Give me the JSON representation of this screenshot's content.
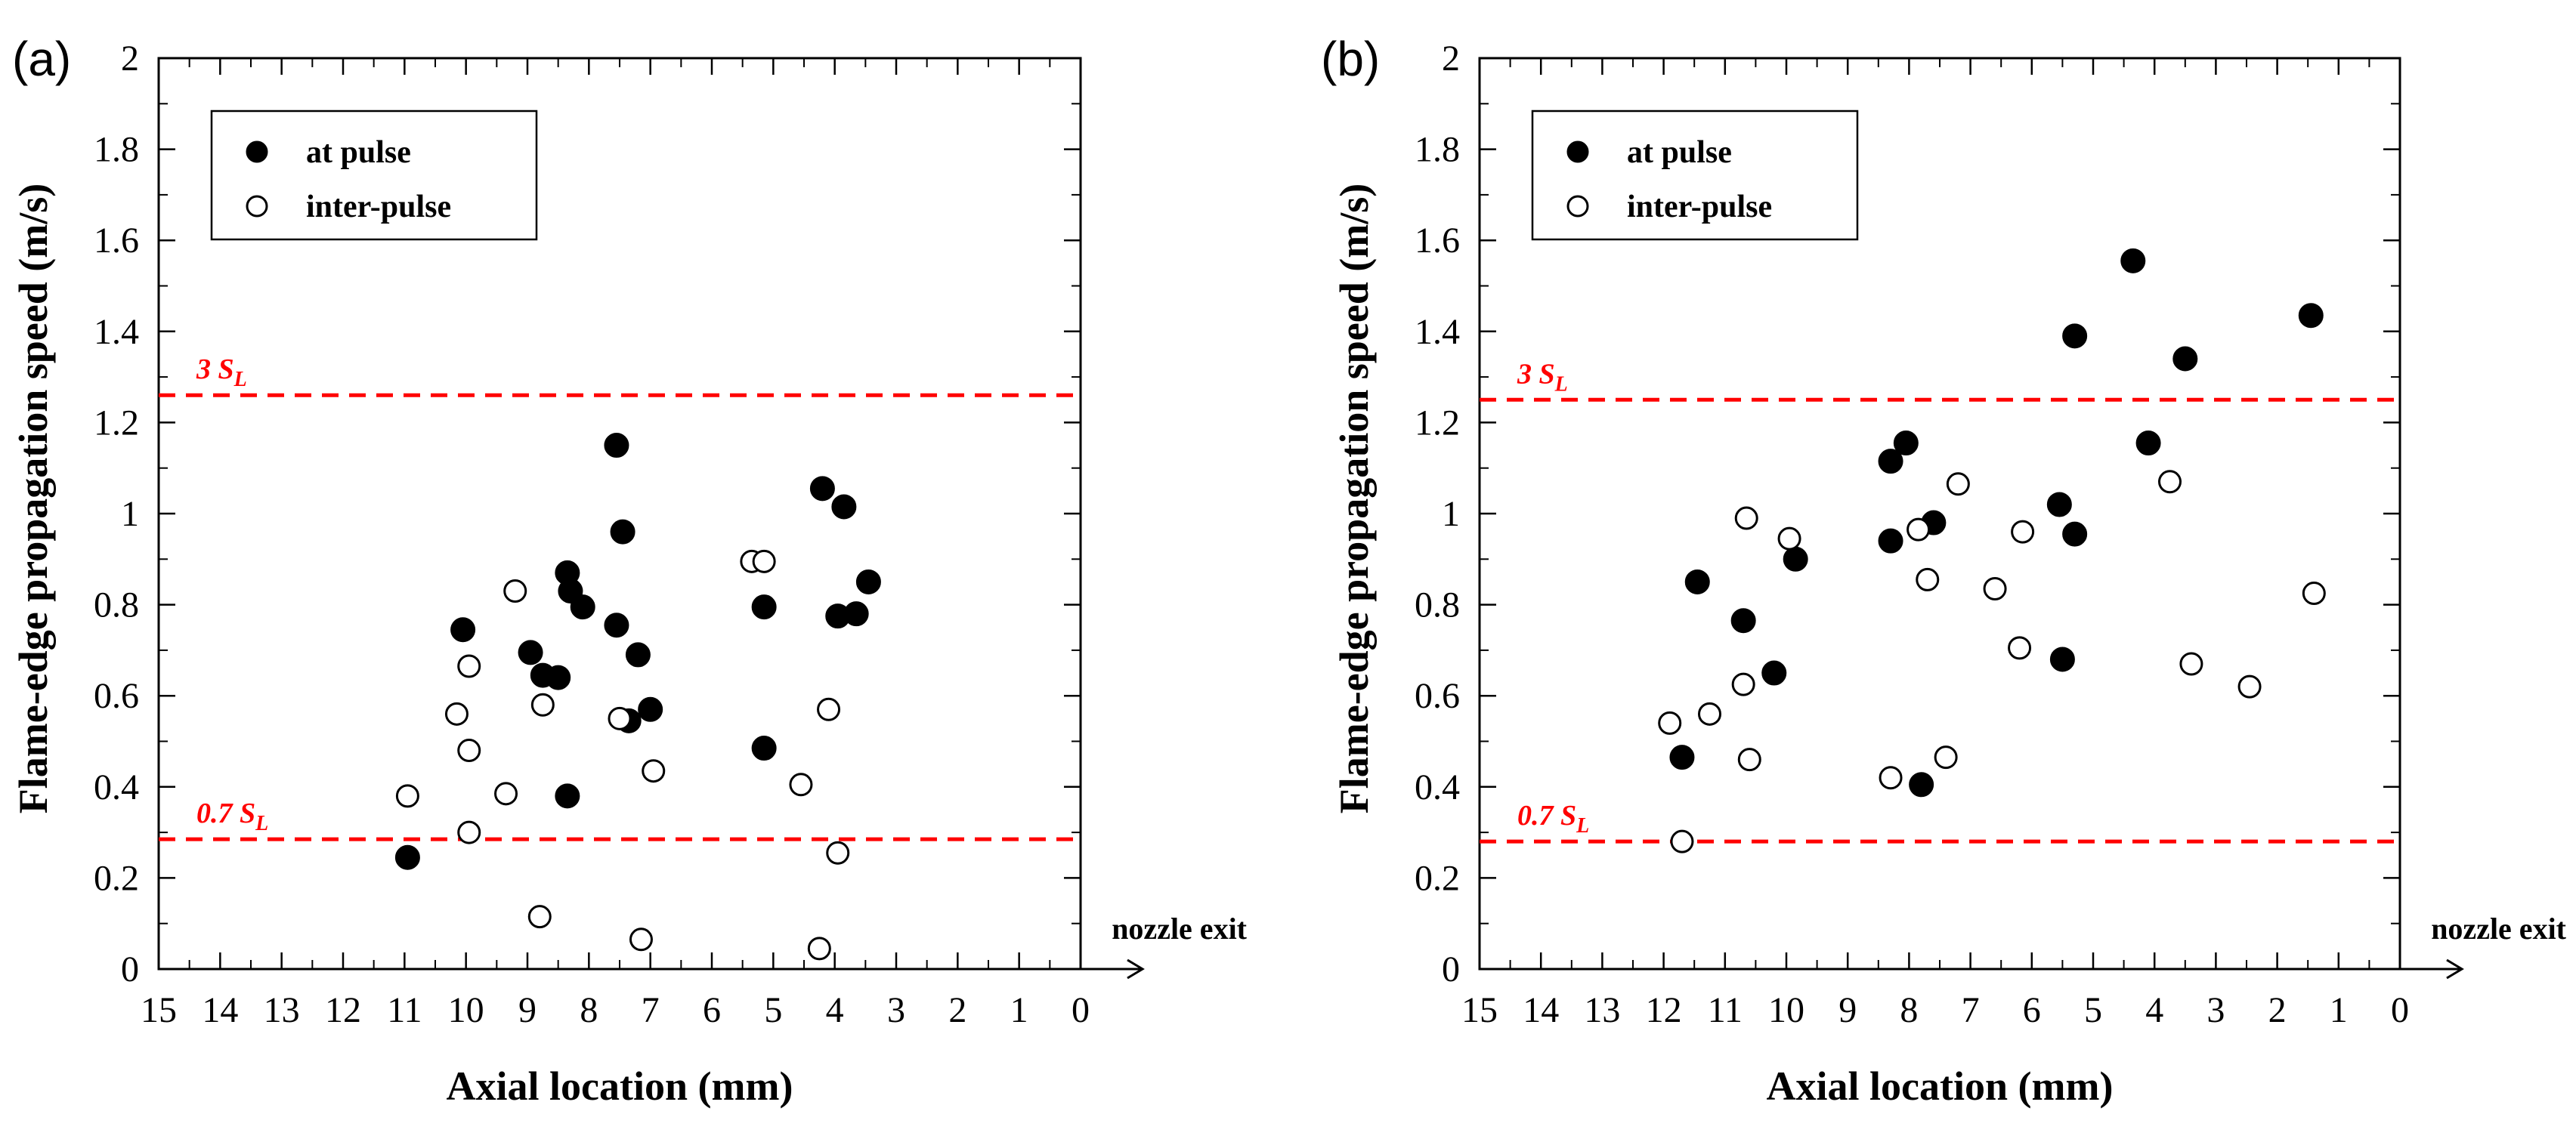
{
  "chart_data": [
    {
      "panel_label": "(a)",
      "type": "scatter",
      "xlabel": "Axial location (mm)",
      "ylabel": "Flame-edge propagation speed (m/s)",
      "xlim": [
        15,
        0
      ],
      "ylim": [
        0,
        2
      ],
      "x_reversed": true,
      "x_ticks": [
        "15",
        "14",
        "13",
        "12",
        "11",
        "10",
        "9",
        "8",
        "7",
        "6",
        "5",
        "4",
        "3",
        "2",
        "1",
        "0"
      ],
      "y_ticks": [
        "0",
        "0.2",
        "0.4",
        "0.6",
        "0.8",
        "1",
        "1.2",
        "1.4",
        "1.6",
        "1.8",
        "2"
      ],
      "grid": false,
      "legend_position": "top-left",
      "reference_lines": [
        {
          "value": 1.26,
          "label": "3 S",
          "subscript": "L",
          "color": "#ff0000",
          "style": "dashed"
        },
        {
          "value": 0.285,
          "label": "0.7 S",
          "subscript": "L",
          "color": "#ff0000",
          "style": "dashed"
        }
      ],
      "annotation": "nozzle exit",
      "series": [
        {
          "name": "at pulse",
          "marker": "filled-circle",
          "points": [
            {
              "x": 10.05,
              "y": 0.745
            },
            {
              "x": 10.95,
              "y": 0.245
            },
            {
              "x": 8.95,
              "y": 0.695
            },
            {
              "x": 8.75,
              "y": 0.645
            },
            {
              "x": 8.5,
              "y": 0.64
            },
            {
              "x": 8.35,
              "y": 0.87
            },
            {
              "x": 8.3,
              "y": 0.83
            },
            {
              "x": 8.1,
              "y": 0.795
            },
            {
              "x": 8.35,
              "y": 0.38
            },
            {
              "x": 7.55,
              "y": 1.15
            },
            {
              "x": 7.55,
              "y": 0.755
            },
            {
              "x": 7.45,
              "y": 0.96
            },
            {
              "x": 7.35,
              "y": 0.545
            },
            {
              "x": 7.2,
              "y": 0.69
            },
            {
              "x": 7.0,
              "y": 0.57
            },
            {
              "x": 5.15,
              "y": 0.795
            },
            {
              "x": 5.15,
              "y": 0.485
            },
            {
              "x": 4.2,
              "y": 1.055
            },
            {
              "x": 3.85,
              "y": 1.015
            },
            {
              "x": 3.95,
              "y": 0.775
            },
            {
              "x": 3.65,
              "y": 0.78
            },
            {
              "x": 3.45,
              "y": 0.85
            }
          ]
        },
        {
          "name": "inter-pulse",
          "marker": "open-circle",
          "points": [
            {
              "x": 10.95,
              "y": 0.38
            },
            {
              "x": 10.15,
              "y": 0.56
            },
            {
              "x": 9.95,
              "y": 0.665
            },
            {
              "x": 9.95,
              "y": 0.48
            },
            {
              "x": 9.95,
              "y": 0.3
            },
            {
              "x": 9.2,
              "y": 0.83
            },
            {
              "x": 9.35,
              "y": 0.385
            },
            {
              "x": 8.75,
              "y": 0.58
            },
            {
              "x": 8.8,
              "y": 0.115
            },
            {
              "x": 7.5,
              "y": 0.55
            },
            {
              "x": 7.15,
              "y": 0.065
            },
            {
              "x": 6.95,
              "y": 0.435
            },
            {
              "x": 5.35,
              "y": 0.895
            },
            {
              "x": 5.15,
              "y": 0.895
            },
            {
              "x": 4.55,
              "y": 0.405
            },
            {
              "x": 4.1,
              "y": 0.57
            },
            {
              "x": 3.95,
              "y": 0.255
            },
            {
              "x": 4.25,
              "y": 0.045
            }
          ]
        }
      ]
    },
    {
      "panel_label": "(b)",
      "type": "scatter",
      "xlabel": "Axial location (mm)",
      "ylabel": "Flame-edge propagation speed (m/s)",
      "xlim": [
        15,
        0
      ],
      "ylim": [
        0,
        2
      ],
      "x_reversed": true,
      "x_ticks": [
        "15",
        "14",
        "13",
        "12",
        "11",
        "10",
        "9",
        "8",
        "7",
        "6",
        "5",
        "4",
        "3",
        "2",
        "1",
        "0"
      ],
      "y_ticks": [
        "0",
        "0.2",
        "0.4",
        "0.6",
        "0.8",
        "1",
        "1.2",
        "1.4",
        "1.6",
        "1.8",
        "2"
      ],
      "grid": false,
      "legend_position": "top-left",
      "reference_lines": [
        {
          "value": 1.25,
          "label": "3 S",
          "subscript": "L",
          "color": "#ff0000",
          "style": "dashed"
        },
        {
          "value": 0.28,
          "label": "0.7 S",
          "subscript": "L",
          "color": "#ff0000",
          "style": "dashed"
        }
      ],
      "annotation": "nozzle exit",
      "series": [
        {
          "name": "at pulse",
          "marker": "filled-circle",
          "points": [
            {
              "x": 11.7,
              "y": 0.465
            },
            {
              "x": 11.45,
              "y": 0.85
            },
            {
              "x": 10.7,
              "y": 0.765
            },
            {
              "x": 10.2,
              "y": 0.65
            },
            {
              "x": 9.85,
              "y": 0.9
            },
            {
              "x": 8.3,
              "y": 1.115
            },
            {
              "x": 8.05,
              "y": 1.155
            },
            {
              "x": 8.3,
              "y": 0.94
            },
            {
              "x": 7.6,
              "y": 0.98
            },
            {
              "x": 7.8,
              "y": 0.405
            },
            {
              "x": 5.55,
              "y": 1.02
            },
            {
              "x": 5.5,
              "y": 0.68
            },
            {
              "x": 5.3,
              "y": 1.39
            },
            {
              "x": 5.3,
              "y": 0.955
            },
            {
              "x": 4.35,
              "y": 1.555
            },
            {
              "x": 4.1,
              "y": 1.155
            },
            {
              "x": 3.5,
              "y": 1.34
            },
            {
              "x": 1.45,
              "y": 1.435
            }
          ]
        },
        {
          "name": "inter-pulse",
          "marker": "open-circle",
          "points": [
            {
              "x": 11.9,
              "y": 0.54
            },
            {
              "x": 11.7,
              "y": 0.28
            },
            {
              "x": 11.25,
              "y": 0.56
            },
            {
              "x": 10.65,
              "y": 0.99
            },
            {
              "x": 10.7,
              "y": 0.625
            },
            {
              "x": 10.6,
              "y": 0.46
            },
            {
              "x": 9.95,
              "y": 0.945
            },
            {
              "x": 8.3,
              "y": 0.42
            },
            {
              "x": 7.85,
              "y": 0.965
            },
            {
              "x": 7.7,
              "y": 0.855
            },
            {
              "x": 7.4,
              "y": 0.465
            },
            {
              "x": 7.2,
              "y": 1.065
            },
            {
              "x": 6.6,
              "y": 0.835
            },
            {
              "x": 6.15,
              "y": 0.96
            },
            {
              "x": 6.2,
              "y": 0.705
            },
            {
              "x": 3.75,
              "y": 1.07
            },
            {
              "x": 3.4,
              "y": 0.67
            },
            {
              "x": 2.45,
              "y": 0.62
            },
            {
              "x": 1.4,
              "y": 0.825
            }
          ]
        }
      ]
    }
  ]
}
